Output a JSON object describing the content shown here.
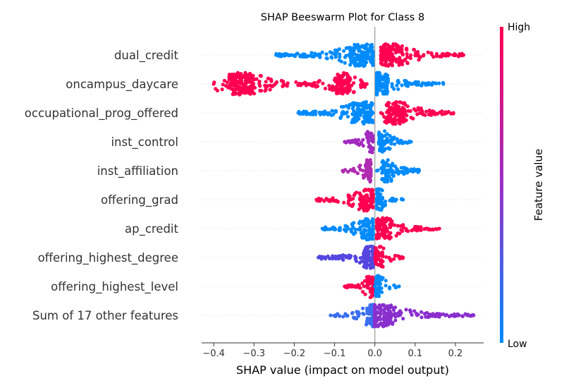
{
  "chart_data": {
    "type": "scatter",
    "subtype": "shap-beeswarm",
    "title": "SHAP Beeswarm Plot for Class 8",
    "xlabel": "SHAP value (impact on model output)",
    "xlim": [
      -0.43,
      0.27
    ],
    "xticks": [
      {
        "value": -0.4,
        "label": "−0.4"
      },
      {
        "value": -0.3,
        "label": "−0.3"
      },
      {
        "value": -0.2,
        "label": "−0.2"
      },
      {
        "value": -0.1,
        "label": "−0.1"
      },
      {
        "value": 0.0,
        "label": "0.0"
      },
      {
        "value": 0.1,
        "label": "0.1"
      },
      {
        "value": 0.2,
        "label": "0.2"
      }
    ],
    "colorbar": {
      "label": "Feature value",
      "high": "High",
      "low": "Low",
      "high_color": "#ff0051",
      "low_color": "#008bfb"
    },
    "features": [
      {
        "name": "dual_credit",
        "segments": [
          {
            "min": -0.245,
            "max": -0.005,
            "mode": -0.03,
            "color": "#008bfb"
          },
          {
            "min": 0.015,
            "max": 0.22,
            "mode": 0.04,
            "color": "#ff0051"
          }
        ]
      },
      {
        "name": "oncampus_daycare",
        "segments": [
          {
            "min": -0.4,
            "max": -0.17,
            "mode": -0.33,
            "color": "#ff0051"
          },
          {
            "min": -0.165,
            "max": -0.02,
            "mode": -0.08,
            "color": "#ff0051"
          },
          {
            "min": 0.005,
            "max": 0.17,
            "mode": 0.01,
            "color": "#008bfb"
          }
        ]
      },
      {
        "name": "occupational_prog_offered",
        "segments": [
          {
            "min": -0.19,
            "max": -0.005,
            "mode": -0.03,
            "color": "#008bfb"
          },
          {
            "min": 0.015,
            "max": 0.195,
            "mode": 0.05,
            "color": "#ff0051"
          }
        ]
      },
      {
        "name": "inst_control",
        "segments": [
          {
            "min": -0.075,
            "max": -0.005,
            "mode": -0.01,
            "color": "#a22bbe"
          },
          {
            "min": 0.01,
            "max": 0.09,
            "mode": 0.02,
            "color": "#008bfb"
          }
        ]
      },
      {
        "name": "inst_affiliation",
        "segments": [
          {
            "min": -0.08,
            "max": -0.01,
            "mode": -0.015,
            "color": "#b02cb0"
          },
          {
            "min": 0.005,
            "max": 0.11,
            "mode": 0.03,
            "color": "#008bfb"
          }
        ]
      },
      {
        "name": "offering_grad",
        "segments": [
          {
            "min": -0.145,
            "max": -0.005,
            "mode": -0.02,
            "color": "#ff0051"
          },
          {
            "min": 0.005,
            "max": 0.07,
            "mode": 0.01,
            "color": "#008bfb"
          }
        ]
      },
      {
        "name": "ap_credit",
        "segments": [
          {
            "min": -0.13,
            "max": -0.005,
            "mode": -0.015,
            "color": "#008bfb"
          },
          {
            "min": 0.005,
            "max": 0.16,
            "mode": 0.02,
            "color": "#ff0051"
          }
        ]
      },
      {
        "name": "offering_highest_degree",
        "segments": [
          {
            "min": -0.14,
            "max": -0.005,
            "mode": -0.01,
            "color": "#5546e0"
          },
          {
            "min": 0.0,
            "max": 0.07,
            "mode": 0.01,
            "color": "#ff0051"
          }
        ]
      },
      {
        "name": "offering_highest_level",
        "segments": [
          {
            "min": -0.075,
            "max": -0.005,
            "mode": -0.01,
            "color": "#ff0051"
          },
          {
            "min": 0.0,
            "max": 0.06,
            "mode": 0.01,
            "color": "#008bfb"
          }
        ]
      },
      {
        "name": "Sum of 17 other features",
        "segments": [
          {
            "min": -0.11,
            "max": -0.005,
            "mode": -0.005,
            "color": "#3b6ef0"
          },
          {
            "min": 0.0,
            "max": 0.245,
            "mode": 0.01,
            "color": "#8a2fce"
          }
        ]
      }
    ]
  }
}
